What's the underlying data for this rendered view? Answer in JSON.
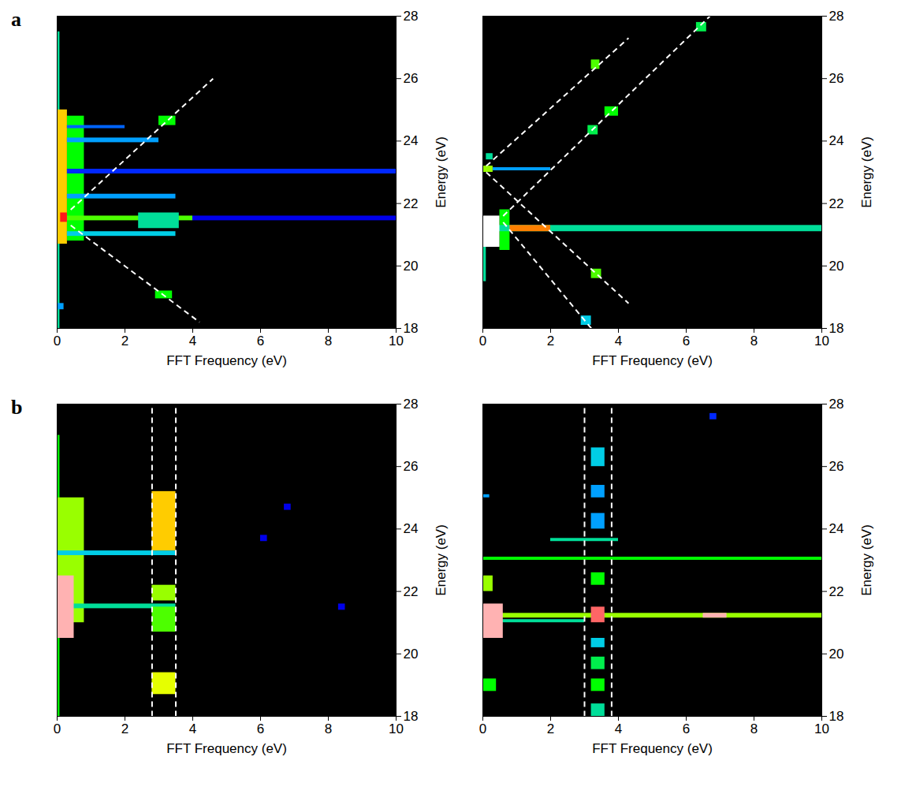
{
  "chart_data": [
    {
      "type": "heatmap",
      "panel": "a",
      "xlabel": "FFT Frequency (eV)",
      "ylabel": "Energy (eV)",
      "xlim": [
        0,
        10
      ],
      "ylim": [
        18,
        28
      ],
      "xticks": [
        0,
        2,
        4,
        6,
        8,
        10
      ],
      "yticks": [
        18,
        20,
        22,
        24,
        26,
        28
      ],
      "zlim": [
        0,
        1
      ],
      "line_style": "dashed",
      "color": "#ffffff",
      "cells": [
        {
          "x": [
            0,
            0.08
          ],
          "y": [
            18,
            27.5
          ],
          "value": 0.4
        },
        {
          "x": [
            0.3,
            0.8
          ],
          "y": [
            20.8,
            24.8
          ],
          "value": 0.5
        },
        {
          "x": [
            0,
            0.3
          ],
          "y": [
            20.7,
            25
          ],
          "value": 0.7
        },
        {
          "x": [
            0.3,
            10
          ],
          "y": [
            22.95,
            23.1
          ],
          "value": 0.2
        },
        {
          "x": [
            4,
            10
          ],
          "y": [
            21.45,
            21.6
          ],
          "value": 0.15
        },
        {
          "x": [
            0.3,
            4
          ],
          "y": [
            21.45,
            21.6
          ],
          "value": 0.55
        },
        {
          "x": [
            0.3,
            3.5
          ],
          "y": [
            22.15,
            22.3
          ],
          "value": 0.3
        },
        {
          "x": [
            0.3,
            3
          ],
          "y": [
            23.95,
            24.1
          ],
          "value": 0.3
        },
        {
          "x": [
            0.3,
            3.5
          ],
          "y": [
            20.95,
            21.1
          ],
          "value": 0.35
        },
        {
          "x": [
            0.3,
            2
          ],
          "y": [
            24.4,
            24.5
          ],
          "value": 0.25
        },
        {
          "x": [
            2.4,
            3.6
          ],
          "y": [
            21.2,
            21.7
          ],
          "value": 0.4
        },
        {
          "x": [
            3.0,
            3.5
          ],
          "y": [
            24.5,
            24.8
          ],
          "value": 0.5
        },
        {
          "x": [
            2.9,
            3.4
          ],
          "y": [
            18.95,
            19.2
          ],
          "value": 0.5
        },
        {
          "x": [
            0,
            0.2
          ],
          "y": [
            18.6,
            18.8
          ],
          "value": 0.3
        },
        {
          "x": [
            0.1,
            0.3
          ],
          "y": [
            21.4,
            21.7
          ],
          "value": 0.85
        }
      ],
      "lines": [
        {
          "x": [
            0.4,
            4.6
          ],
          "y": [
            21.8,
            26.0
          ]
        },
        {
          "x": [
            0.4,
            4.2
          ],
          "y": [
            21.3,
            18.2
          ]
        }
      ]
    },
    {
      "type": "heatmap",
      "xlabel": "FFT Frequency (eV)",
      "ylabel": "Energy (eV)",
      "xlim": [
        0,
        10
      ],
      "ylim": [
        18,
        28
      ],
      "xticks": [
        0,
        2,
        4,
        6,
        8,
        10
      ],
      "yticks": [
        18,
        20,
        22,
        24,
        26,
        28
      ],
      "zlim": [
        0,
        1
      ],
      "line_style": "dashed",
      "color": "#ffffff",
      "cells": [
        {
          "x": [
            0,
            0.1
          ],
          "y": [
            19.5,
            21
          ],
          "value": 0.4
        },
        {
          "x": [
            0.5,
            0.8
          ],
          "y": [
            20.5,
            21.8
          ],
          "value": 0.5
        },
        {
          "x": [
            0,
            10
          ],
          "y": [
            21.1,
            21.3
          ],
          "value": 0.4
        },
        {
          "x": [
            0.8,
            2
          ],
          "y": [
            21.1,
            21.3
          ],
          "value": 0.75
        },
        {
          "x": [
            0,
            0.5
          ],
          "y": [
            20.6,
            21.6
          ],
          "value": 1.0
        },
        {
          "x": [
            0.3,
            2
          ],
          "y": [
            23.05,
            23.15
          ],
          "value": 0.3
        },
        {
          "x": [
            0,
            0.3
          ],
          "y": [
            23.0,
            23.2
          ],
          "value": 0.6
        },
        {
          "x": [
            0.1,
            0.3
          ],
          "y": [
            23.4,
            23.6
          ],
          "value": 0.4
        },
        {
          "x": [
            3.2,
            3.45
          ],
          "y": [
            26.3,
            26.6
          ],
          "value": 0.55
        },
        {
          "x": [
            6.3,
            6.6
          ],
          "y": [
            27.5,
            27.8
          ],
          "value": 0.45
        },
        {
          "x": [
            3.6,
            4.0
          ],
          "y": [
            24.8,
            25.1
          ],
          "value": 0.5
        },
        {
          "x": [
            3.1,
            3.4
          ],
          "y": [
            24.2,
            24.5
          ],
          "value": 0.45
        },
        {
          "x": [
            3.2,
            3.5
          ],
          "y": [
            19.6,
            19.9
          ],
          "value": 0.55
        },
        {
          "x": [
            2.9,
            3.2
          ],
          "y": [
            18.1,
            18.4
          ],
          "value": 0.35
        }
      ],
      "lines": [
        {
          "x": [
            0.1,
            4.3
          ],
          "y": [
            23.2,
            27.3
          ]
        },
        {
          "x": [
            0.6,
            6.7
          ],
          "y": [
            21.6,
            28.0
          ]
        },
        {
          "x": [
            0.1,
            4.3
          ],
          "y": [
            23.0,
            18.8
          ]
        },
        {
          "x": [
            0.6,
            3.2
          ],
          "y": [
            21.4,
            18.0
          ]
        }
      ]
    },
    {
      "type": "heatmap",
      "panel": "b",
      "xlabel": "FFT Frequency (eV)",
      "ylabel": "Energy (eV)",
      "xlim": [
        0,
        10
      ],
      "ylim": [
        18,
        28
      ],
      "xticks": [
        0,
        2,
        4,
        6,
        8,
        10
      ],
      "yticks": [
        18,
        20,
        22,
        24,
        26,
        28
      ],
      "zlim": [
        0,
        1
      ],
      "line_style": "dashed",
      "color": "#ffffff",
      "cells": [
        {
          "x": [
            0,
            0.08
          ],
          "y": [
            18,
            27
          ],
          "value": 0.5
        },
        {
          "x": [
            0,
            0.8
          ],
          "y": [
            21,
            25
          ],
          "value": 0.6
        },
        {
          "x": [
            0,
            3.5
          ],
          "y": [
            23.15,
            23.3
          ],
          "value": 0.35
        },
        {
          "x": [
            0,
            3.5
          ],
          "y": [
            21.45,
            21.6
          ],
          "value": 0.4
        },
        {
          "x": [
            0,
            0.5
          ],
          "y": [
            20.5,
            22.5
          ],
          "value": 0.95
        },
        {
          "x": [
            2.8,
            3.5
          ],
          "y": [
            23.3,
            25.2
          ],
          "value": 0.7
        },
        {
          "x": [
            2.8,
            3.5
          ],
          "y": [
            21.7,
            22.2
          ],
          "value": 0.6
        },
        {
          "x": [
            2.8,
            3.5
          ],
          "y": [
            20.7,
            21.5
          ],
          "value": 0.55
        },
        {
          "x": [
            2.8,
            3.5
          ],
          "y": [
            18.7,
            19.4
          ],
          "value": 0.65
        },
        {
          "x": [
            6.0,
            6.2
          ],
          "y": [
            23.6,
            23.8
          ],
          "value": 0.15
        },
        {
          "x": [
            6.7,
            6.9
          ],
          "y": [
            24.6,
            24.8
          ],
          "value": 0.15
        },
        {
          "x": [
            8.3,
            8.5
          ],
          "y": [
            21.4,
            21.6
          ],
          "value": 0.15
        }
      ],
      "lines": [
        {
          "x": [
            2.8,
            2.8
          ],
          "y": [
            18,
            28
          ]
        },
        {
          "x": [
            3.5,
            3.5
          ],
          "y": [
            18,
            28
          ]
        }
      ]
    },
    {
      "type": "heatmap",
      "xlabel": "FFT Frequency (eV)",
      "ylabel": "Energy (eV)",
      "xlim": [
        0,
        10
      ],
      "ylim": [
        18,
        28
      ],
      "xticks": [
        0,
        2,
        4,
        6,
        8,
        10
      ],
      "yticks": [
        18,
        20,
        22,
        24,
        26,
        28
      ],
      "zlim": [
        0,
        1
      ],
      "line_style": "dashed",
      "color": "#ffffff",
      "cells": [
        {
          "x": [
            0,
            10
          ],
          "y": [
            21.15,
            21.3
          ],
          "value": 0.6
        },
        {
          "x": [
            0,
            10
          ],
          "y": [
            23.0,
            23.1
          ],
          "value": 0.5
        },
        {
          "x": [
            0.5,
            3
          ],
          "y": [
            21.0,
            21.1
          ],
          "value": 0.4
        },
        {
          "x": [
            2,
            4
          ],
          "y": [
            23.6,
            23.7
          ],
          "value": 0.4
        },
        {
          "x": [
            0,
            0.6
          ],
          "y": [
            20.5,
            21.6
          ],
          "value": 0.95
        },
        {
          "x": [
            0,
            0.4
          ],
          "y": [
            18.8,
            19.2
          ],
          "value": 0.5
        },
        {
          "x": [
            0,
            0.3
          ],
          "y": [
            22.0,
            22.5
          ],
          "value": 0.6
        },
        {
          "x": [
            0,
            0.2
          ],
          "y": [
            25.0,
            25.1
          ],
          "value": 0.3
        },
        {
          "x": [
            3.2,
            3.6
          ],
          "y": [
            26.0,
            26.6
          ],
          "value": 0.35
        },
        {
          "x": [
            3.2,
            3.6
          ],
          "y": [
            25.0,
            25.4
          ],
          "value": 0.3
        },
        {
          "x": [
            3.2,
            3.6
          ],
          "y": [
            24.0,
            24.5
          ],
          "value": 0.3
        },
        {
          "x": [
            3.2,
            3.6
          ],
          "y": [
            22.2,
            22.6
          ],
          "value": 0.5
        },
        {
          "x": [
            3.2,
            3.6
          ],
          "y": [
            21.0,
            21.5
          ],
          "value": 0.9
        },
        {
          "x": [
            3.2,
            3.6
          ],
          "y": [
            20.2,
            20.5
          ],
          "value": 0.35
        },
        {
          "x": [
            3.2,
            3.6
          ],
          "y": [
            19.5,
            19.9
          ],
          "value": 0.45
        },
        {
          "x": [
            3.2,
            3.6
          ],
          "y": [
            18.8,
            19.2
          ],
          "value": 0.5
        },
        {
          "x": [
            3.2,
            3.6
          ],
          "y": [
            18.0,
            18.4
          ],
          "value": 0.4
        },
        {
          "x": [
            6.5,
            7.2
          ],
          "y": [
            21.15,
            21.3
          ],
          "value": 0.95
        },
        {
          "x": [
            6.7,
            6.9
          ],
          "y": [
            27.5,
            27.7
          ],
          "value": 0.2
        }
      ],
      "lines": [
        {
          "x": [
            3.0,
            3.0
          ],
          "y": [
            18,
            28
          ]
        },
        {
          "x": [
            3.8,
            3.8
          ],
          "y": [
            18,
            28
          ]
        }
      ]
    }
  ]
}
